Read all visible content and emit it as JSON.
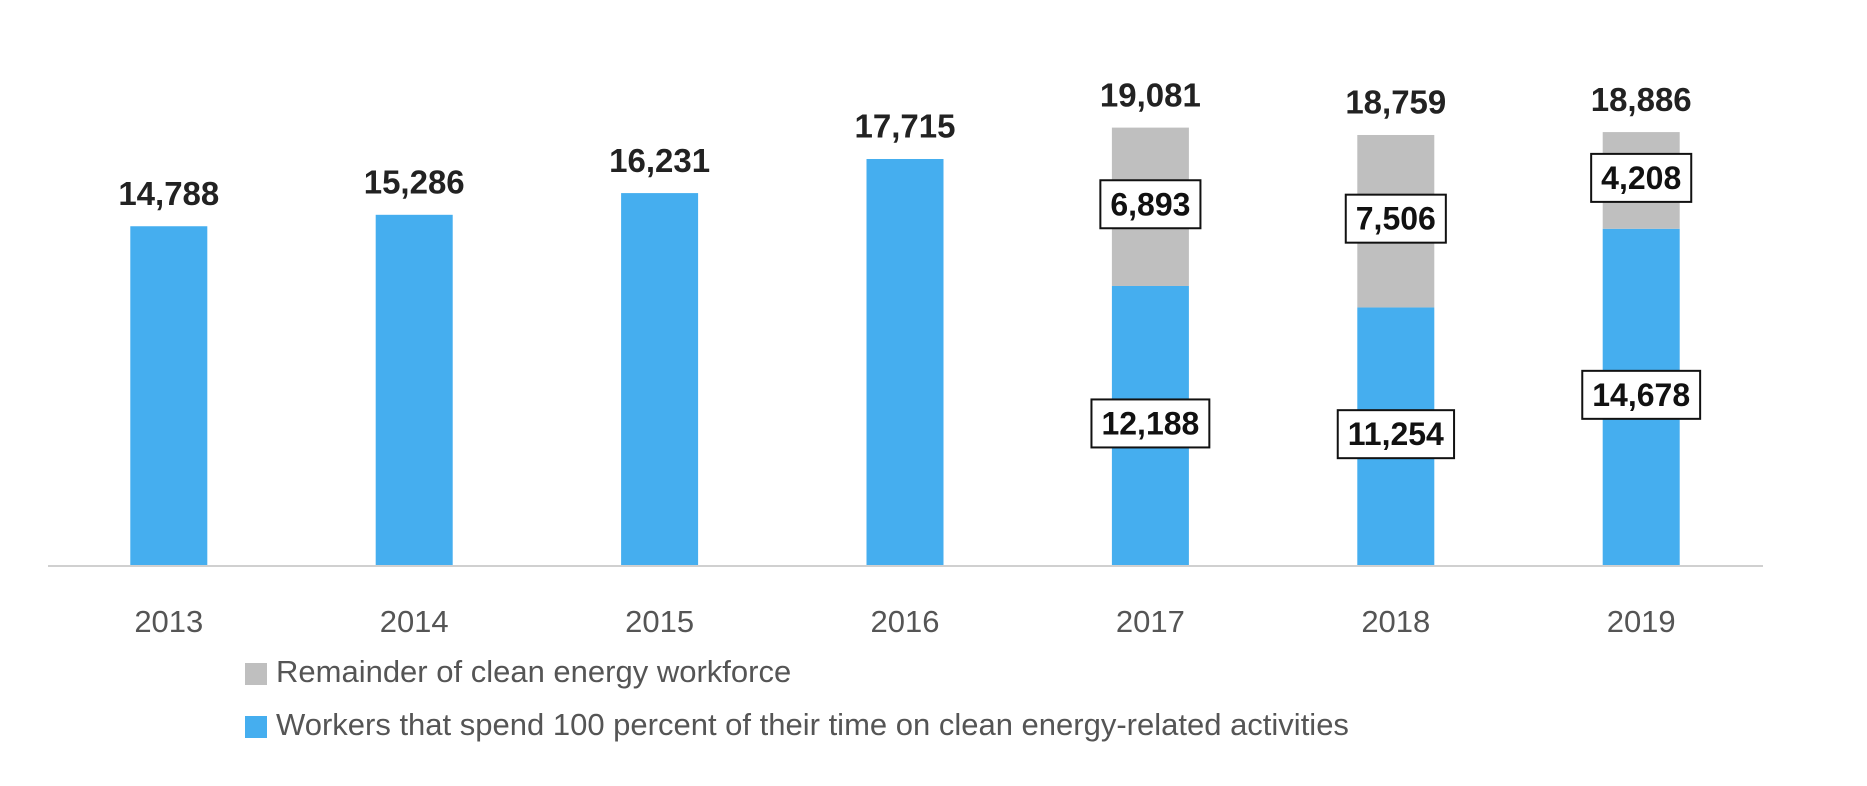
{
  "chart_data": {
    "type": "stacked-bar",
    "categories": [
      "2013",
      "2014",
      "2015",
      "2016",
      "2017",
      "2018",
      "2019"
    ],
    "series": [
      {
        "name": "Workers that spend 100 percent of their time on clean energy-related activities",
        "color": "#45aeef",
        "values": [
          14788,
          15286,
          16231,
          17715,
          12188,
          11254,
          14678
        ],
        "value_labels": [
          null,
          null,
          null,
          null,
          "12,188",
          "11,254",
          "14,678"
        ]
      },
      {
        "name": "Remainder of clean energy workforce",
        "color": "#bfbfbf",
        "values": [
          null,
          null,
          null,
          null,
          6893,
          7506,
          4208
        ],
        "value_labels": [
          null,
          null,
          null,
          null,
          "6,893",
          "7,506",
          "4,208"
        ]
      }
    ],
    "totals": [
      14788,
      15286,
      16231,
      17715,
      19081,
      18759,
      18886
    ],
    "total_labels": [
      "14,788",
      "15,286",
      "16,231",
      "17,715",
      "19,081",
      "18,759",
      "18,886"
    ],
    "ylim": [
      0,
      20000
    ]
  }
}
